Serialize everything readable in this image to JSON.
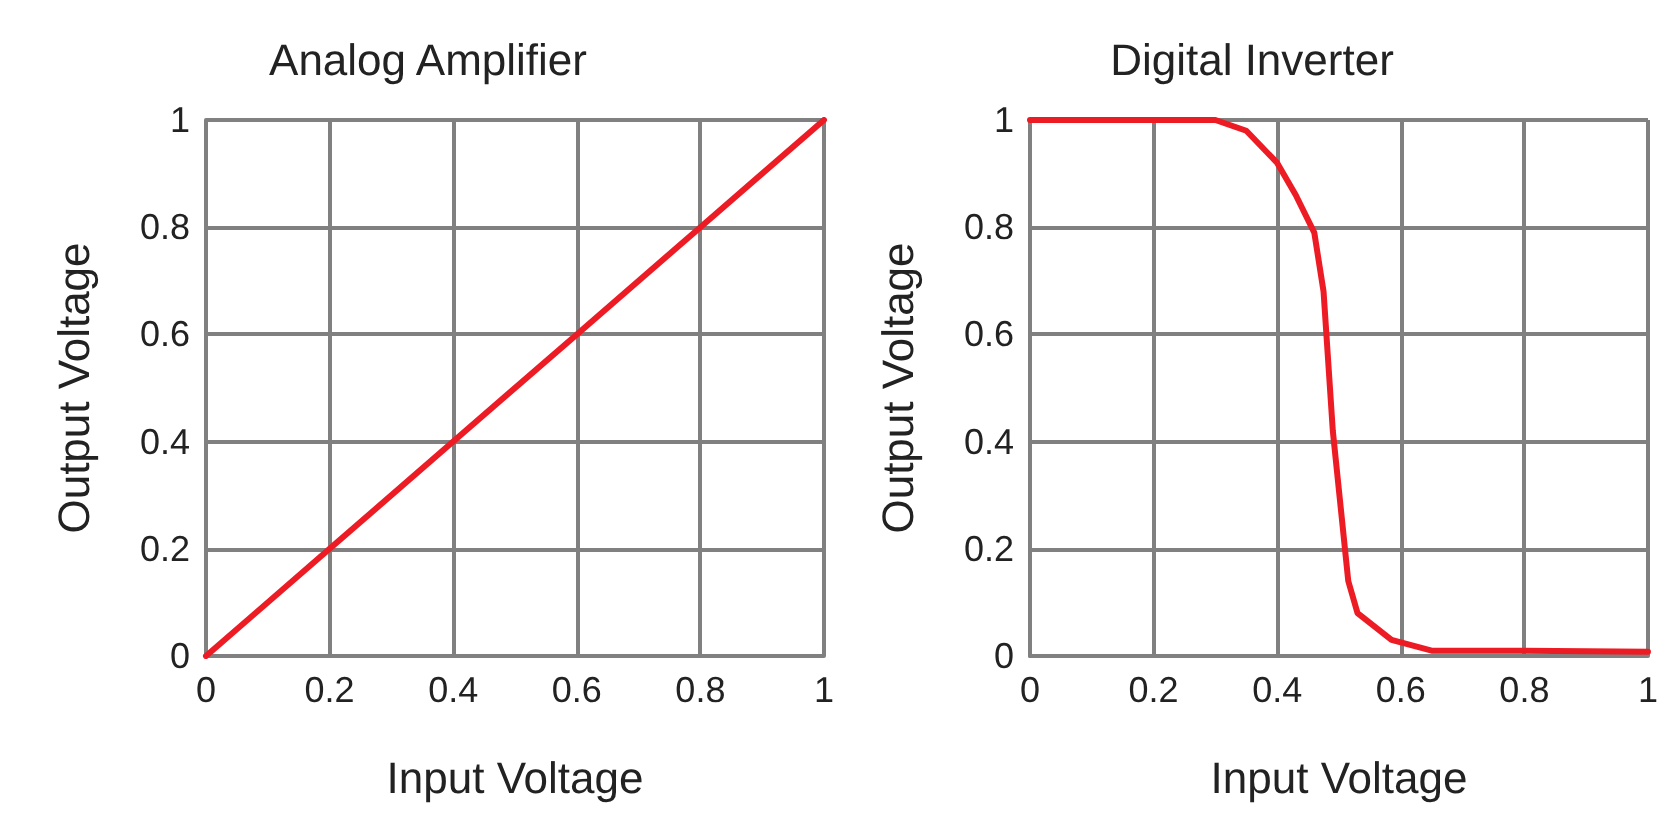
{
  "chart_data": [
    {
      "type": "line",
      "title": "Analog Amplifier",
      "xlabel": "Input Voltage",
      "ylabel": "Output Voltage",
      "series": [
        {
          "color": "#ed1c24",
          "x": [
            0,
            0.2,
            0.4,
            0.6,
            0.8,
            1
          ],
          "values": [
            0,
            0.2,
            0.4,
            0.6,
            0.8,
            1
          ]
        }
      ],
      "xlim": [
        0,
        1
      ],
      "ylim": [
        0,
        1
      ],
      "xticks": [
        0,
        0.2,
        0.4,
        0.6,
        0.8,
        1
      ],
      "yticks": [
        0,
        0.2,
        0.4,
        0.6,
        0.8,
        1
      ],
      "grid": true,
      "marker": "none",
      "line_style": "solid"
    },
    {
      "type": "line",
      "title": "Digital Inverter",
      "xlabel": "Input Voltage",
      "ylabel": "Output Voltage",
      "series": [
        {
          "color": "#ed1c24",
          "x": [
            0,
            0.3,
            0.35,
            0.4,
            0.43,
            0.46,
            0.475,
            0.49,
            0.515,
            0.53,
            0.585,
            0.65,
            0.8,
            1
          ],
          "values": [
            1,
            1,
            0.98,
            0.92,
            0.86,
            0.79,
            0.68,
            0.42,
            0.14,
            0.08,
            0.03,
            0.01,
            0.01,
            0.008
          ]
        }
      ],
      "xlim": [
        0,
        1
      ],
      "ylim": [
        0,
        1
      ],
      "xticks": [
        0,
        0.2,
        0.4,
        0.6,
        0.8,
        1
      ],
      "yticks": [
        0,
        0.2,
        0.4,
        0.6,
        0.8,
        1
      ],
      "grid": true,
      "marker": "none",
      "line_style": "solid"
    }
  ]
}
